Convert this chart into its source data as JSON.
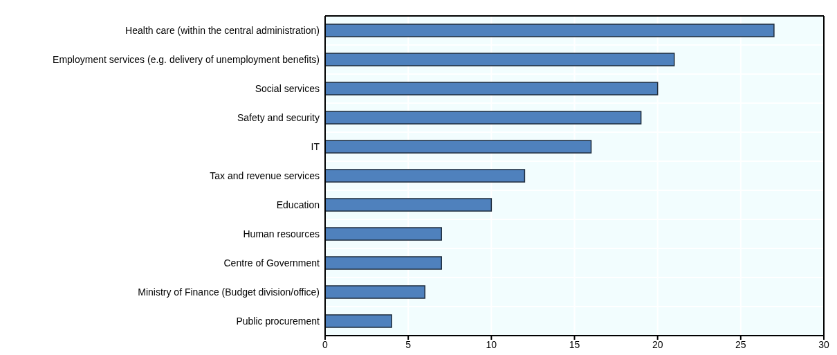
{
  "chart_data": {
    "type": "bar",
    "orientation": "horizontal",
    "categories": [
      "Health care (within the central administration)",
      "Employment services (e.g. delivery of unemployment benefits)",
      "Social services",
      "Safety and security",
      "IT",
      "Tax and revenue services",
      "Education",
      "Human resources",
      "Centre of Government",
      "Ministry of Finance (Budget division/office)",
      "Public procurement"
    ],
    "values": [
      27,
      21,
      20,
      19,
      16,
      12,
      10,
      7,
      7,
      6,
      4
    ],
    "color": "#4f81bd",
    "xlim": [
      0,
      30
    ],
    "xticks": [
      0,
      5,
      10,
      15,
      20,
      25,
      30
    ],
    "grid": true
  }
}
